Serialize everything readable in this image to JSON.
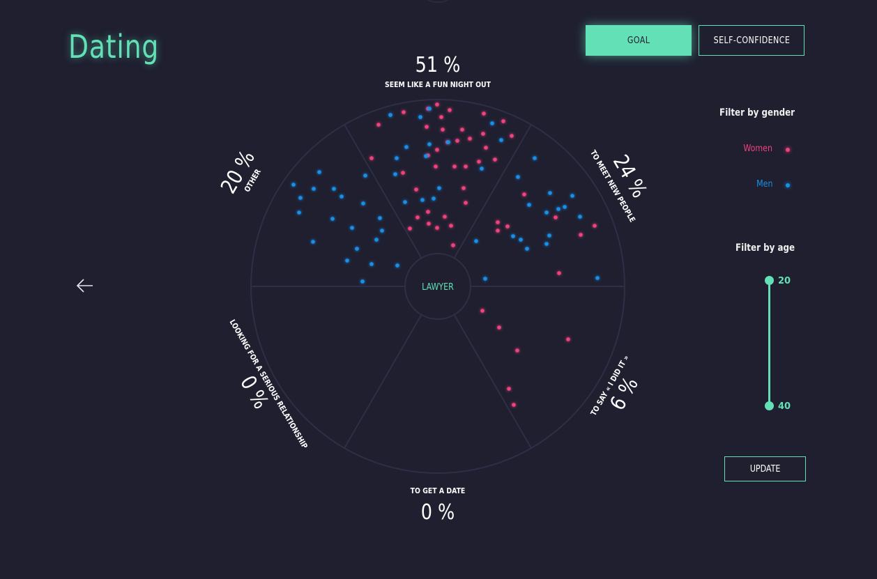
{
  "app": {
    "title": "Dating"
  },
  "toolbar": {
    "goal_label": "GOAL",
    "self_confidence_label": "SELF-CONFIDENCE",
    "active_tab": "GOAL"
  },
  "filters": {
    "gender_label": "Filter by gender",
    "women_label": "Women",
    "men_label": "Men",
    "age_label": "Filter by age",
    "age_min": "20",
    "age_max": "40",
    "update_label": "UPDATE"
  },
  "colors": {
    "accent": "#63e0b5",
    "background": "#1f1f30",
    "women": "#f0427c",
    "men": "#1a8fe8",
    "grid": "#2e2e46"
  },
  "icons": {
    "back": "arrow-left-icon"
  },
  "chart_data": {
    "type": "scatter",
    "center_label": "LAWYER",
    "segments": [
      {
        "label": "SEEM LIKE A FUN NIGHT OUT",
        "value": "51 %"
      },
      {
        "label": "TO MEET NEW PEOPLE",
        "value": "24 %"
      },
      {
        "label": "TO SAY « I DID IT »",
        "value": "6 %"
      },
      {
        "label": "TO GET A DATE",
        "value": "0 %"
      },
      {
        "label": "LOOKING FOR A SERIOUS RELATIONSHIP",
        "value": "0 %"
      },
      {
        "label": "OTHER",
        "value": "20 %"
      }
    ],
    "series": [
      {
        "name": "Women",
        "color": "#f0427c",
        "points": [
          [
            543,
            179
          ],
          [
            579,
            161
          ],
          [
            614,
            156
          ],
          [
            627,
            150
          ],
          [
            645,
            158
          ],
          [
            633,
            168
          ],
          [
            612,
            182
          ],
          [
            635,
            186
          ],
          [
            663,
            186
          ],
          [
            694,
            163
          ],
          [
            722,
            174
          ],
          [
            734,
            195
          ],
          [
            693,
            192
          ],
          [
            656,
            202
          ],
          [
            674,
            199
          ],
          [
            642,
            204
          ],
          [
            627,
            215
          ],
          [
            614,
            223
          ],
          [
            697,
            212
          ],
          [
            710,
            229
          ],
          [
            687,
            232
          ],
          [
            668,
            239
          ],
          [
            652,
            239
          ],
          [
            625,
            239
          ],
          [
            578,
            248
          ],
          [
            533,
            227
          ],
          [
            597,
            272
          ],
          [
            665,
            270
          ],
          [
            668,
            291
          ],
          [
            614,
            304
          ],
          [
            599,
            312
          ],
          [
            638,
            311
          ],
          [
            647,
            324
          ],
          [
            627,
            327
          ],
          [
            615,
            321
          ],
          [
            588,
            328
          ],
          [
            650,
            352
          ],
          [
            714,
            319
          ],
          [
            714,
            331
          ],
          [
            728,
            325
          ],
          [
            752,
            279
          ],
          [
            797,
            312
          ],
          [
            833,
            337
          ],
          [
            853,
            324
          ],
          [
            802,
            392
          ],
          [
            692,
            446
          ],
          [
            716,
            470
          ],
          [
            742,
            503
          ],
          [
            815,
            487
          ],
          [
            730,
            558
          ],
          [
            737,
            581
          ]
        ]
      },
      {
        "name": "Men",
        "color": "#1a8fe8",
        "points": [
          [
            560,
            165
          ],
          [
            603,
            168
          ],
          [
            616,
            156
          ],
          [
            706,
            177
          ],
          [
            719,
            201
          ],
          [
            643,
            204
          ],
          [
            616,
            207
          ],
          [
            583,
            211
          ],
          [
            611,
            224
          ],
          [
            569,
            227
          ],
          [
            767,
            227
          ],
          [
            691,
            242
          ],
          [
            567,
            250
          ],
          [
            524,
            252
          ],
          [
            743,
            254
          ],
          [
            458,
            247
          ],
          [
            421,
            265
          ],
          [
            431,
            284
          ],
          [
            450,
            271
          ],
          [
            479,
            271
          ],
          [
            490,
            282
          ],
          [
            630,
            270
          ],
          [
            606,
            287
          ],
          [
            622,
            285
          ],
          [
            581,
            290
          ],
          [
            521,
            292
          ],
          [
            429,
            305
          ],
          [
            477,
            314
          ],
          [
            759,
            294
          ],
          [
            789,
            277
          ],
          [
            821,
            281
          ],
          [
            810,
            297
          ],
          [
            784,
            305
          ],
          [
            801,
            300
          ],
          [
            832,
            311
          ],
          [
            545,
            313
          ],
          [
            548,
            331
          ],
          [
            505,
            327
          ],
          [
            540,
            344
          ],
          [
            449,
            347
          ],
          [
            512,
            357
          ],
          [
            533,
            379
          ],
          [
            498,
            374
          ],
          [
            570,
            381
          ],
          [
            520,
            404
          ],
          [
            683,
            346
          ],
          [
            736,
            339
          ],
          [
            747,
            344
          ],
          [
            756,
            357
          ],
          [
            788,
            338
          ],
          [
            784,
            350
          ],
          [
            696,
            400
          ],
          [
            857,
            399
          ]
        ]
      }
    ]
  }
}
